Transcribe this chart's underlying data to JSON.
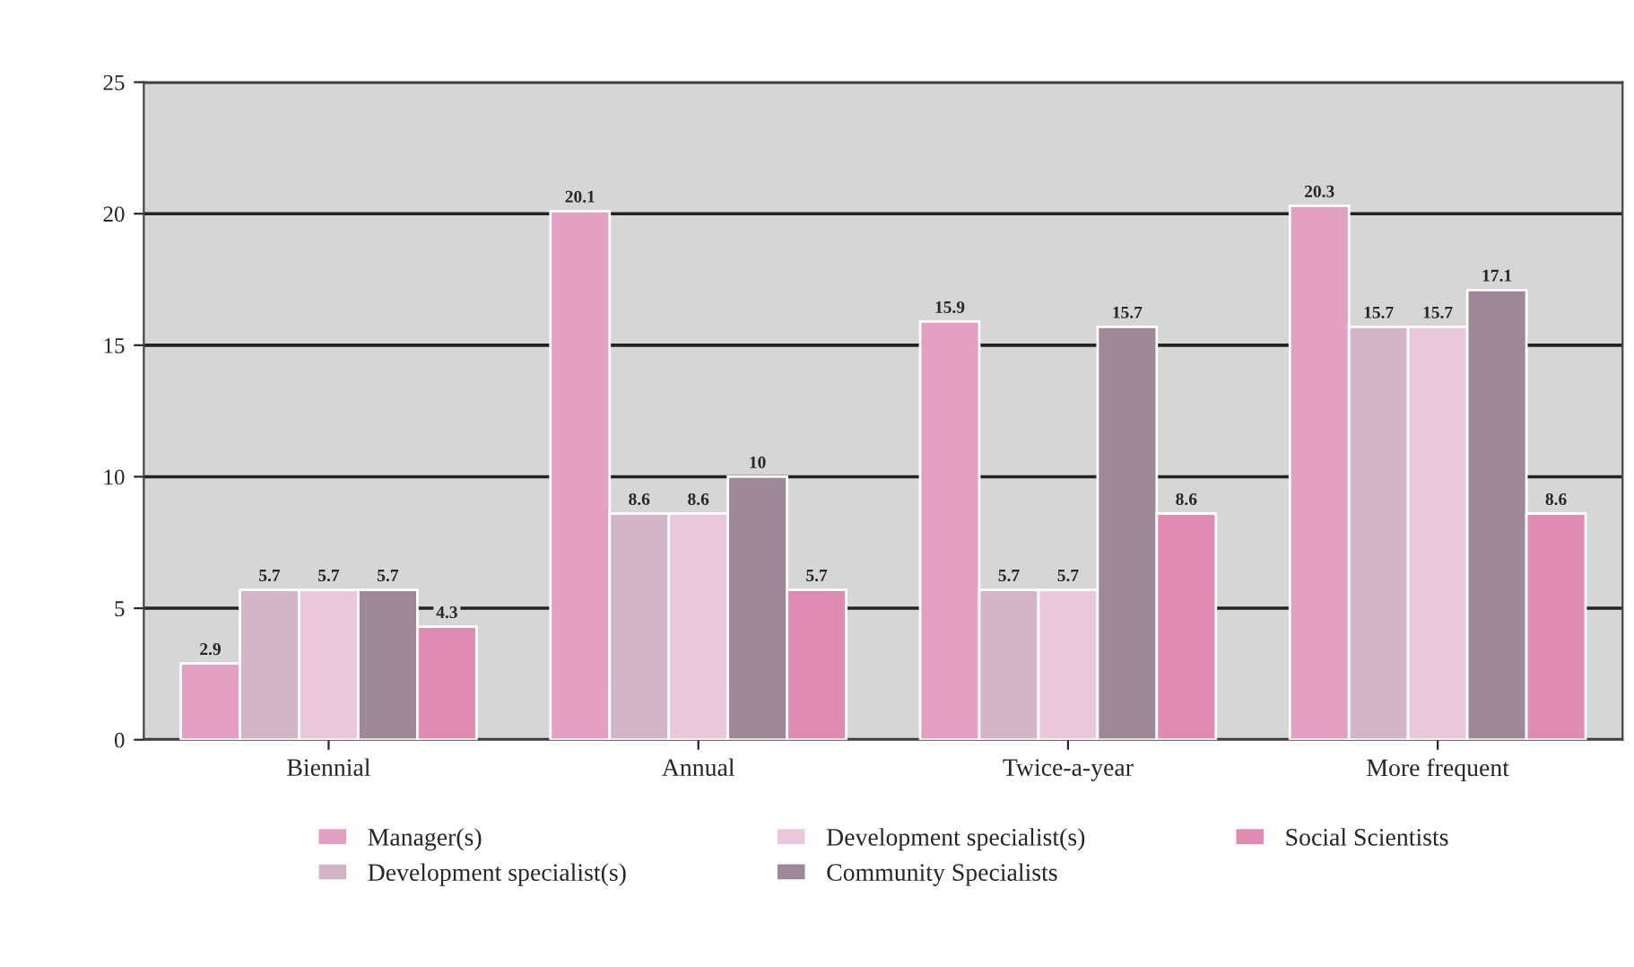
{
  "chart_data": {
    "type": "bar",
    "categories": [
      "Biennial",
      "Annual",
      "Twice-a-year",
      "More frequent"
    ],
    "series": [
      {
        "name": "Manager(s)",
        "color": "#e3a0c2",
        "values": [
          2.9,
          20.1,
          15.9,
          20.3
        ]
      },
      {
        "name": "Development specialist(s)",
        "color": "#d2b6c8",
        "values": [
          5.7,
          8.6,
          5.7,
          15.7
        ]
      },
      {
        "name": "Development specialist(s)",
        "color": "#e8c8da",
        "values": [
          5.7,
          8.6,
          5.7,
          15.7
        ]
      },
      {
        "name": "Community Specialists",
        "color": "#9c8896",
        "values": [
          5.7,
          10,
          15.7,
          17.1
        ]
      },
      {
        "name": "Social Scientists",
        "color": "#e08cb2",
        "values": [
          4.3,
          5.7,
          8.6,
          8.6
        ]
      }
    ],
    "ylim": [
      0,
      25
    ],
    "yticks": [
      0,
      5,
      10,
      15,
      20,
      25
    ],
    "grid": "y",
    "legend": "bottom",
    "data_labels": true
  }
}
